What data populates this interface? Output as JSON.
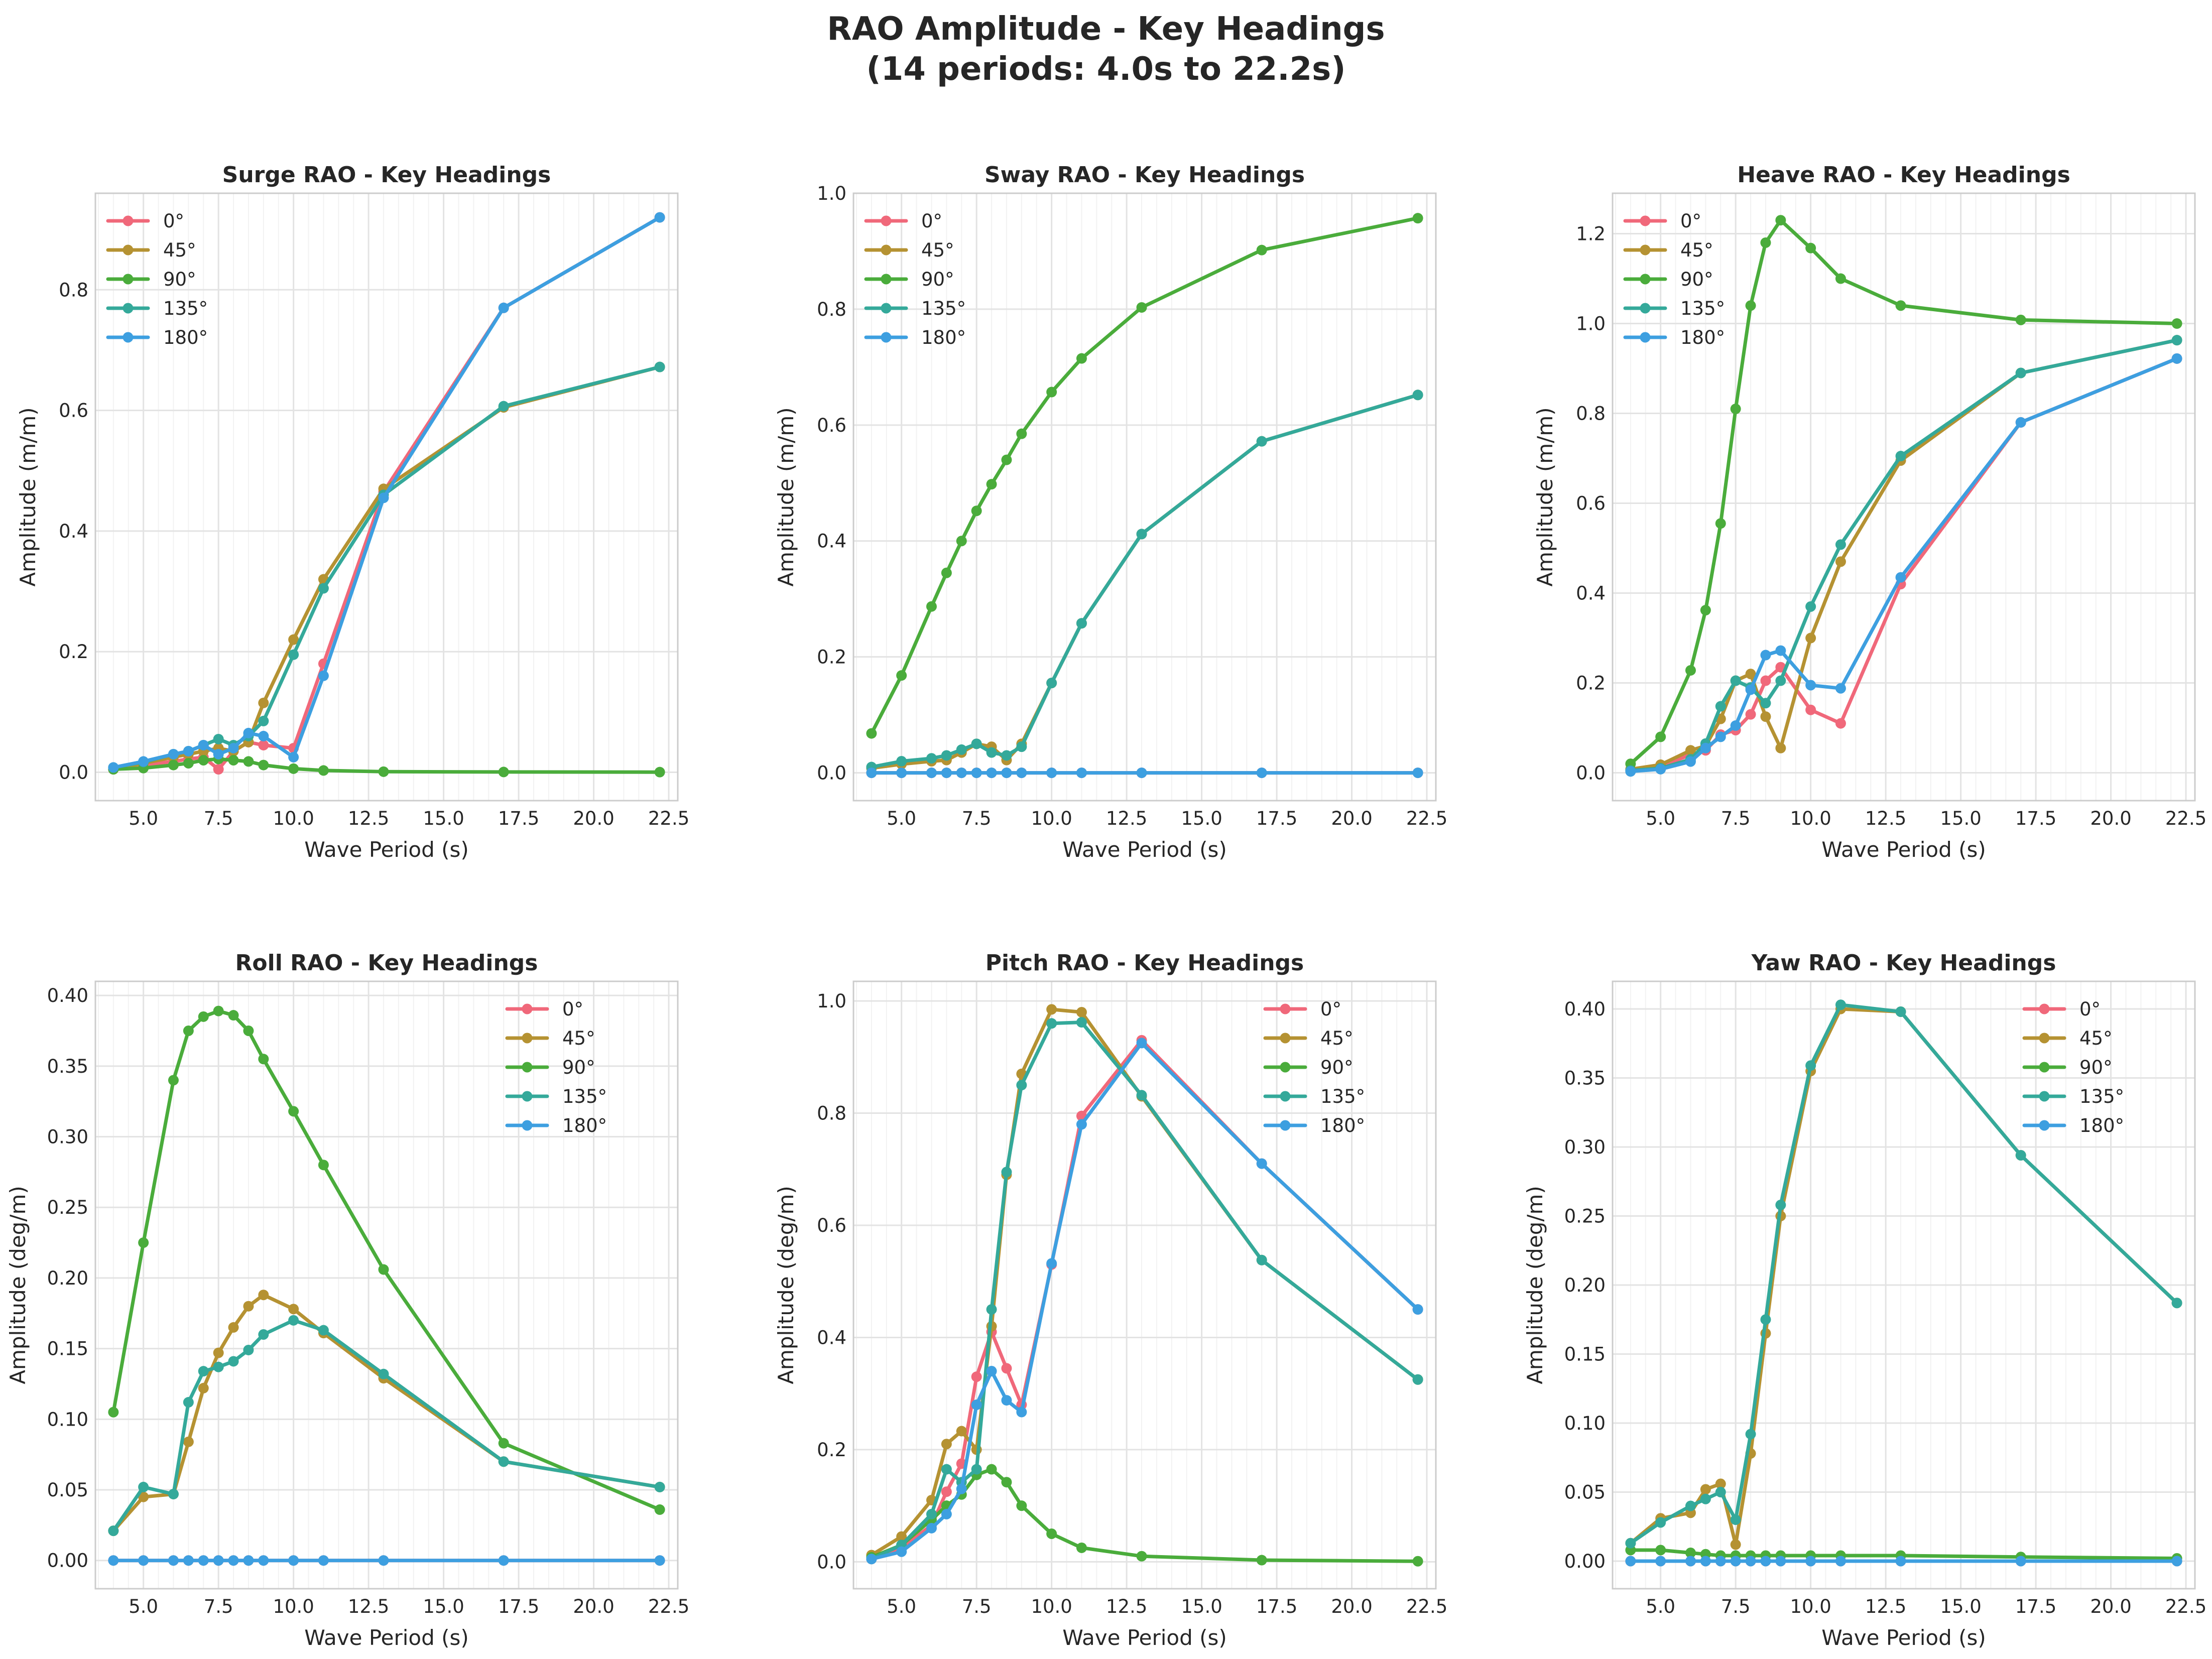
{
  "figure": {
    "title_line1": "RAO Amplitude - Key Headings",
    "title_line2": "(14 periods: 4.0s to 22.2s)"
  },
  "headings": [
    "0°",
    "45°",
    "90°",
    "135°",
    "180°"
  ],
  "colors": [
    "#f0687a",
    "#b59232",
    "#4aac3b",
    "#34a99a",
    "#3d9fe0"
  ],
  "chart_data": [
    {
      "type": "line",
      "title": "Surge RAO - Key Headings",
      "xlabel": "Wave Period (s)",
      "ylabel": "Amplitude (m/m)",
      "xlim": [
        3.4,
        22.8
      ],
      "ylim": [
        -0.047,
        0.96
      ],
      "xticks": [
        5.0,
        7.5,
        10.0,
        12.5,
        15.0,
        17.5,
        20.0,
        22.5
      ],
      "yticks": [
        0.0,
        0.2,
        0.4,
        0.6,
        0.8
      ],
      "ytick_decimals": 1,
      "legend": "upper left",
      "grid": true,
      "x": [
        4.0,
        5.0,
        6.0,
        6.5,
        7.0,
        7.5,
        8.0,
        8.5,
        9.0,
        10.0,
        11.0,
        13.0,
        17.0,
        22.2
      ],
      "series": [
        {
          "name": "0°",
          "values": [
            0.005,
            0.012,
            0.018,
            0.022,
            0.025,
            0.005,
            0.035,
            0.05,
            0.045,
            0.04,
            0.18,
            0.465,
            0.77,
            0.92
          ]
        },
        {
          "name": "45°",
          "values": [
            0.005,
            0.015,
            0.025,
            0.03,
            0.035,
            0.04,
            0.035,
            0.05,
            0.115,
            0.22,
            0.32,
            0.47,
            0.605,
            0.672
          ]
        },
        {
          "name": "90°",
          "values": [
            0.005,
            0.007,
            0.012,
            0.015,
            0.02,
            0.022,
            0.02,
            0.018,
            0.012,
            0.006,
            0.003,
            0.001,
            0.0005,
            0.0003
          ]
        },
        {
          "name": "135°",
          "values": [
            0.008,
            0.017,
            0.03,
            0.035,
            0.045,
            0.055,
            0.045,
            0.06,
            0.085,
            0.195,
            0.305,
            0.46,
            0.607,
            0.672
          ]
        },
        {
          "name": "180°",
          "values": [
            0.008,
            0.018,
            0.03,
            0.035,
            0.045,
            0.03,
            0.04,
            0.065,
            0.06,
            0.025,
            0.16,
            0.455,
            0.77,
            0.92
          ]
        }
      ]
    },
    {
      "type": "line",
      "title": "Sway RAO - Key Headings",
      "xlabel": "Wave Period (s)",
      "ylabel": "Amplitude (m/m)",
      "xlim": [
        3.4,
        22.8
      ],
      "ylim": [
        -0.048,
        1.0
      ],
      "xticks": [
        5.0,
        7.5,
        10.0,
        12.5,
        15.0,
        17.5,
        20.0,
        22.5
      ],
      "yticks": [
        0.0,
        0.2,
        0.4,
        0.6,
        0.8,
        1.0
      ],
      "ytick_decimals": 1,
      "legend": "upper left",
      "grid": true,
      "x": [
        4.0,
        5.0,
        6.0,
        6.5,
        7.0,
        7.5,
        8.0,
        8.5,
        9.0,
        10.0,
        11.0,
        13.0,
        17.0,
        22.2
      ],
      "series": [
        {
          "name": "0°",
          "values": [
            0.0,
            0.0,
            0.0,
            0.0,
            0.0,
            0.0,
            0.0,
            0.0,
            0.0,
            0.0,
            0.0,
            0.0,
            0.0,
            0.0
          ]
        },
        {
          "name": "45°",
          "values": [
            0.008,
            0.015,
            0.02,
            0.022,
            0.035,
            0.05,
            0.045,
            0.022,
            0.05,
            0.155,
            0.258,
            0.412,
            0.572,
            0.652
          ]
        },
        {
          "name": "90°",
          "values": [
            0.068,
            0.168,
            0.287,
            0.345,
            0.4,
            0.452,
            0.498,
            0.54,
            0.585,
            0.657,
            0.715,
            0.803,
            0.902,
            0.957
          ]
        },
        {
          "name": "135°",
          "values": [
            0.01,
            0.02,
            0.025,
            0.03,
            0.04,
            0.05,
            0.035,
            0.03,
            0.045,
            0.155,
            0.258,
            0.412,
            0.572,
            0.652
          ]
        },
        {
          "name": "180°",
          "values": [
            0.0,
            0.0,
            0.0,
            0.0,
            0.0,
            0.0,
            0.0,
            0.0,
            0.0,
            0.0,
            0.0,
            0.0,
            0.0,
            0.0
          ]
        }
      ]
    },
    {
      "type": "line",
      "title": "Heave RAO - Key Headings",
      "xlabel": "Wave Period (s)",
      "ylabel": "Amplitude (m/m)",
      "xlim": [
        3.4,
        22.8
      ],
      "ylim": [
        -0.062,
        1.29
      ],
      "xticks": [
        5.0,
        7.5,
        10.0,
        12.5,
        15.0,
        17.5,
        20.0,
        22.5
      ],
      "yticks": [
        0.0,
        0.2,
        0.4,
        0.6,
        0.8,
        1.0,
        1.2
      ],
      "ytick_decimals": 1,
      "legend": "upper left",
      "grid": true,
      "x": [
        4.0,
        5.0,
        6.0,
        6.5,
        7.0,
        7.5,
        8.0,
        8.5,
        9.0,
        10.0,
        11.0,
        13.0,
        17.0,
        22.2
      ],
      "series": [
        {
          "name": "0°",
          "values": [
            0.005,
            0.015,
            0.04,
            0.05,
            0.085,
            0.095,
            0.13,
            0.205,
            0.235,
            0.14,
            0.11,
            0.42,
            0.78,
            0.922
          ]
        },
        {
          "name": "45°",
          "values": [
            0.008,
            0.018,
            0.05,
            0.06,
            0.12,
            0.205,
            0.22,
            0.125,
            0.055,
            0.3,
            0.47,
            0.695,
            0.89,
            0.963
          ]
        },
        {
          "name": "90°",
          "values": [
            0.02,
            0.08,
            0.228,
            0.362,
            0.555,
            0.81,
            1.04,
            1.18,
            1.23,
            1.168,
            1.1,
            1.04,
            1.008,
            1.0
          ]
        },
        {
          "name": "135°",
          "values": [
            0.005,
            0.01,
            0.03,
            0.065,
            0.148,
            0.205,
            0.19,
            0.155,
            0.205,
            0.37,
            0.508,
            0.705,
            0.89,
            0.963
          ]
        },
        {
          "name": "180°",
          "values": [
            0.003,
            0.008,
            0.025,
            0.055,
            0.08,
            0.105,
            0.185,
            0.262,
            0.272,
            0.195,
            0.188,
            0.435,
            0.78,
            0.922
          ]
        }
      ]
    },
    {
      "type": "line",
      "title": "Roll RAO - Key Headings",
      "xlabel": "Wave Period (s)",
      "ylabel": "Amplitude (deg/m)",
      "xlim": [
        3.4,
        22.8
      ],
      "ylim": [
        -0.02,
        0.41
      ],
      "xticks": [
        5.0,
        7.5,
        10.0,
        12.5,
        15.0,
        17.5,
        20.0,
        22.5
      ],
      "yticks": [
        0.0,
        0.05,
        0.1,
        0.15,
        0.2,
        0.25,
        0.3,
        0.35,
        0.4
      ],
      "ytick_decimals": 2,
      "legend": "upper right",
      "grid": true,
      "x": [
        4.0,
        5.0,
        6.0,
        6.5,
        7.0,
        7.5,
        8.0,
        8.5,
        9.0,
        10.0,
        11.0,
        13.0,
        17.0,
        22.2
      ],
      "series": [
        {
          "name": "0°",
          "values": [
            0.0,
            0.0,
            0.0,
            0.0,
            0.0,
            0.0,
            0.0,
            0.0,
            0.0,
            0.0,
            0.0,
            0.0,
            0.0,
            0.0
          ]
        },
        {
          "name": "45°",
          "values": [
            0.021,
            0.045,
            0.047,
            0.084,
            0.122,
            0.147,
            0.165,
            0.18,
            0.188,
            0.178,
            0.161,
            0.129,
            0.07,
            0.052
          ]
        },
        {
          "name": "90°",
          "values": [
            0.105,
            0.225,
            0.34,
            0.375,
            0.385,
            0.389,
            0.386,
            0.375,
            0.355,
            0.318,
            0.28,
            0.206,
            0.083,
            0.036
          ]
        },
        {
          "name": "135°",
          "values": [
            0.021,
            0.052,
            0.047,
            0.112,
            0.134,
            0.137,
            0.141,
            0.149,
            0.16,
            0.17,
            0.163,
            0.132,
            0.07,
            0.052
          ]
        },
        {
          "name": "180°",
          "values": [
            0.0,
            0.0,
            0.0,
            0.0,
            0.0,
            0.0,
            0.0,
            0.0,
            0.0,
            0.0,
            0.0,
            0.0,
            0.0,
            0.0
          ]
        }
      ]
    },
    {
      "type": "line",
      "title": "Pitch RAO - Key Headings",
      "xlabel": "Wave Period (s)",
      "ylabel": "Amplitude (deg/m)",
      "xlim": [
        3.4,
        22.8
      ],
      "ylim": [
        -0.048,
        1.035
      ],
      "xticks": [
        5.0,
        7.5,
        10.0,
        12.5,
        15.0,
        17.5,
        20.0,
        22.5
      ],
      "yticks": [
        0.0,
        0.2,
        0.4,
        0.6,
        0.8,
        1.0
      ],
      "ytick_decimals": 1,
      "legend": "upper right",
      "grid": true,
      "x": [
        4.0,
        5.0,
        6.0,
        6.5,
        7.0,
        7.5,
        8.0,
        8.5,
        9.0,
        10.0,
        11.0,
        13.0,
        17.0,
        22.2
      ],
      "series": [
        {
          "name": "0°",
          "values": [
            0.005,
            0.025,
            0.065,
            0.125,
            0.175,
            0.33,
            0.41,
            0.345,
            0.28,
            0.53,
            0.795,
            0.93,
            0.71,
            0.45
          ]
        },
        {
          "name": "45°",
          "values": [
            0.012,
            0.045,
            0.11,
            0.21,
            0.233,
            0.2,
            0.42,
            0.69,
            0.87,
            0.985,
            0.98,
            0.83,
            0.538,
            0.325
          ]
        },
        {
          "name": "90°",
          "values": [
            0.008,
            0.03,
            0.075,
            0.1,
            0.12,
            0.155,
            0.165,
            0.142,
            0.1,
            0.05,
            0.025,
            0.01,
            0.003,
            0.001
          ]
        },
        {
          "name": "135°",
          "values": [
            0.005,
            0.03,
            0.085,
            0.165,
            0.142,
            0.165,
            0.45,
            0.695,
            0.85,
            0.96,
            0.962,
            0.832,
            0.538,
            0.325
          ]
        },
        {
          "name": "180°",
          "values": [
            0.005,
            0.018,
            0.06,
            0.085,
            0.13,
            0.28,
            0.34,
            0.288,
            0.267,
            0.532,
            0.78,
            0.925,
            0.71,
            0.45
          ]
        }
      ]
    },
    {
      "type": "line",
      "title": "Yaw RAO - Key Headings",
      "xlabel": "Wave Period (s)",
      "ylabel": "Amplitude (deg/m)",
      "xlim": [
        3.4,
        22.8
      ],
      "ylim": [
        -0.02,
        0.42
      ],
      "xticks": [
        5.0,
        7.5,
        10.0,
        12.5,
        15.0,
        17.5,
        20.0,
        22.5
      ],
      "yticks": [
        0.0,
        0.05,
        0.1,
        0.15,
        0.2,
        0.25,
        0.3,
        0.35,
        0.4
      ],
      "ytick_decimals": 2,
      "legend": "upper right",
      "grid": true,
      "x": [
        4.0,
        5.0,
        6.0,
        6.5,
        7.0,
        7.5,
        8.0,
        8.5,
        9.0,
        10.0,
        11.0,
        13.0,
        17.0,
        22.2
      ],
      "series": [
        {
          "name": "0°",
          "values": [
            0.0,
            0.0,
            0.0,
            0.0,
            0.0,
            0.0,
            0.0,
            0.0,
            0.0,
            0.0,
            0.0,
            0.0,
            0.0,
            0.0
          ]
        },
        {
          "name": "45°",
          "values": [
            0.013,
            0.031,
            0.035,
            0.052,
            0.056,
            0.012,
            0.078,
            0.165,
            0.25,
            0.355,
            0.4,
            0.398,
            0.294,
            0.187
          ]
        },
        {
          "name": "90°",
          "values": [
            0.008,
            0.008,
            0.006,
            0.005,
            0.004,
            0.004,
            0.004,
            0.004,
            0.004,
            0.004,
            0.004,
            0.004,
            0.003,
            0.002
          ]
        },
        {
          "name": "135°",
          "values": [
            0.013,
            0.028,
            0.04,
            0.045,
            0.05,
            0.03,
            0.092,
            0.175,
            0.258,
            0.359,
            0.403,
            0.398,
            0.294,
            0.187
          ]
        },
        {
          "name": "180°",
          "values": [
            0.0,
            0.0,
            0.0,
            0.0,
            0.0,
            0.0,
            0.0,
            0.0,
            0.0,
            0.0,
            0.0,
            0.0,
            0.0,
            0.0
          ]
        }
      ]
    }
  ]
}
